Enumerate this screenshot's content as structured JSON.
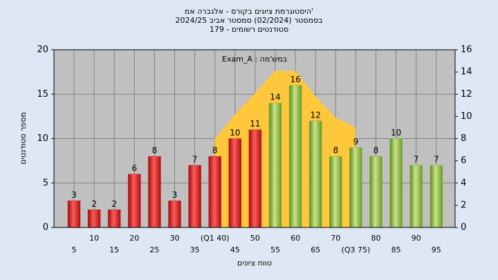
{
  "chart_data": {
    "type": "bar",
    "title": "'היסטוגרמת ציונים בקורס - אלגברה אמ",
    "subtitle": "בסמסטר  (02/2024)  סמסטר אביב 2024/25",
    "subtitle2": "סטודנטים רשומים - 179",
    "annotation": "במש'מה : Exam_A",
    "x_label": "טווח ציונים",
    "y_label": "מספר סטודנטים",
    "categories": [
      "5",
      "10",
      "15",
      "20",
      "25",
      "30",
      "35",
      "(Q1 40)",
      "45",
      "50",
      "55",
      "60",
      "65",
      "70",
      "(Q3 75)",
      "80",
      "85",
      "90",
      "95"
    ],
    "series": [
      {
        "values": [
          3,
          2,
          2,
          6,
          8,
          3,
          7,
          8,
          10,
          11,
          14,
          16,
          12,
          8,
          9,
          8,
          10,
          7,
          7
        ],
        "colors": [
          "#d42020",
          "#d42020",
          "#d42020",
          "#d42020",
          "#d42020",
          "#d42020",
          "#d42020",
          "#d42020",
          "#d42020",
          "#d42020",
          "#8cb83c",
          "#8cb83c",
          "#8cb83c",
          "#8cb83c",
          "#8cb83c",
          "#8cb83c",
          "#8cb83c",
          "#8cb83c",
          "#8cb83c"
        ]
      },
      {
        "type": "area",
        "axis": "y2",
        "color": "#ffc83c",
        "values": [
          null,
          null,
          null,
          null,
          null,
          null,
          null,
          8,
          10.2,
          12.1,
          14.1,
          14.1,
          11.8,
          9.9,
          9,
          null,
          null,
          null,
          null
        ]
      }
    ],
    "ylim": [
      0,
      20
    ],
    "yticks": [
      0,
      5,
      10,
      15,
      20
    ],
    "y2lim": [
      0,
      16
    ],
    "y2ticks": [
      0,
      2,
      4,
      6,
      8,
      10,
      12,
      14,
      16
    ],
    "grid": true
  }
}
